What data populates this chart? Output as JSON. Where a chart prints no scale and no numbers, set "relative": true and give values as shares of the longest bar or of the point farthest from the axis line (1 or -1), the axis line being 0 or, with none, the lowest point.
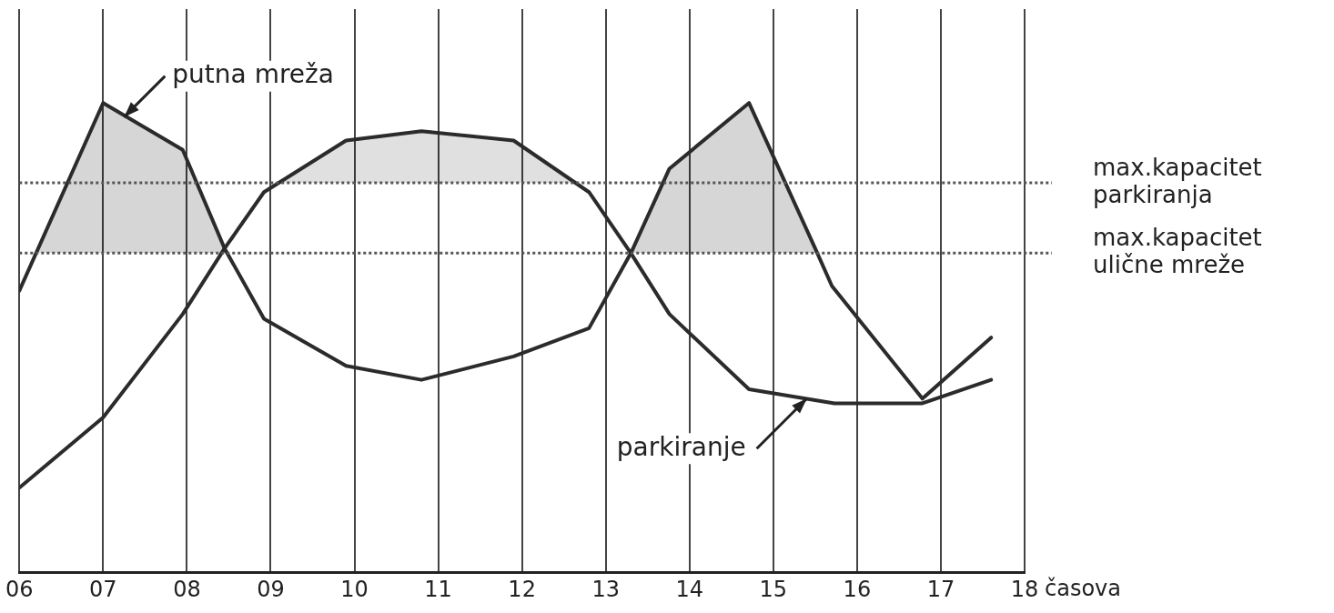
{
  "chart_data": {
    "type": "line",
    "relative": true,
    "grid": "x",
    "legend": false,
    "marker": "none",
    "line_style": "solid",
    "xlabel": "časova",
    "xlim": [
      6,
      18
    ],
    "xticks": [
      {
        "value": 6,
        "label": "06"
      },
      {
        "value": 7,
        "label": "07"
      },
      {
        "value": 8,
        "label": "08"
      },
      {
        "value": 9,
        "label": "09"
      },
      10,
      11,
      12,
      13,
      14,
      15,
      16,
      17,
      18
    ],
    "series": [
      {
        "color": "#2b2b2b",
        "x": [
          6,
          7,
          7.95,
          8.45,
          8.92,
          9.9,
          10.8,
          11.9,
          12.8,
          13.3,
          13.76,
          14.71,
          15.5,
          15.7,
          16.78,
          17.6
        ],
        "values": [
          0.6,
          1,
          0.9,
          0.69,
          0.54,
          0.44,
          0.41,
          0.46,
          0.52,
          0.68,
          0.86,
          1,
          0.69,
          0.61,
          0.37,
          0.5
        ]
      },
      {
        "color": "#2b2b2b",
        "x": [
          6,
          7,
          7.95,
          8.45,
          8.92,
          9.9,
          10.8,
          11.9,
          12.8,
          13.3,
          13.76,
          14.71,
          15.73,
          16.78,
          17.6
        ],
        "values": [
          0.18,
          0.33,
          0.55,
          0.69,
          0.81,
          0.92,
          0.94,
          0.92,
          0.81,
          0.68,
          0.55,
          0.39,
          0.36,
          0.36,
          0.41
        ]
      }
    ],
    "ref_lines": [
      {
        "axis": "y",
        "value": 0.83,
        "label": "max.kapacitet parkiranja",
        "color": "#555555",
        "line_style": "dotted"
      },
      {
        "axis": "y",
        "value": 0.68,
        "label": "max.kapacitet ulične mreže",
        "color": "#555555",
        "line_style": "dotted"
      }
    ],
    "annotations": [
      {
        "text": "putna mreža",
        "x": 7.25,
        "y": 0.97
      },
      {
        "text": "parkiranje",
        "x": 15.4,
        "y": 0.37
      }
    ]
  }
}
